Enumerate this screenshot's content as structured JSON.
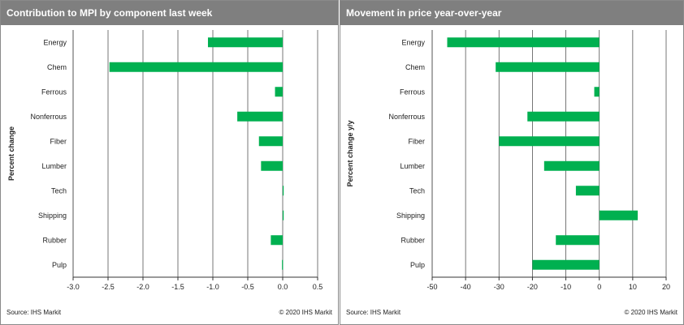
{
  "colors": {
    "bar": "#00b050",
    "header_bg": "#7f7f7f",
    "grid": "#555555"
  },
  "charts": [
    {
      "title": "Contribution  to MPI by component last week",
      "source": "Source:  IHS Markit",
      "copyright": "© 2020  IHS Markit"
    },
    {
      "title": "Movement in price year-over-year",
      "source": "Source:  IHS Markit",
      "copyright": "© 2020  IHS Markit"
    }
  ],
  "chart_data": [
    {
      "type": "bar",
      "orientation": "horizontal",
      "title": "Contribution  to MPI by component last week",
      "ylabel": "Percent change",
      "categories": [
        "Energy",
        "Chem",
        "Ferrous",
        "Nonferrous",
        "Fiber",
        "Lumber",
        "Tech",
        "Shipping",
        "Rubber",
        "Pulp"
      ],
      "values": [
        -1.07,
        -2.48,
        -0.11,
        -0.65,
        -0.34,
        -0.31,
        0.01,
        0.01,
        -0.17,
        -0.01
      ],
      "xlim": [
        -3.0,
        0.5
      ],
      "xticks": [
        "-3.0",
        "-2.5",
        "-2.0",
        "-1.5",
        "-1.0",
        "-0.5",
        "0.0",
        "0.5"
      ],
      "grid": "vertical"
    },
    {
      "type": "bar",
      "orientation": "horizontal",
      "title": "Movement in price year-over-year",
      "ylabel": "Percent change y/y",
      "categories": [
        "Energy",
        "Chem",
        "Ferrous",
        "Nonferrous",
        "Fiber",
        "Lumber",
        "Tech",
        "Shipping",
        "Rubber",
        "Pulp"
      ],
      "values": [
        -45.5,
        -31.0,
        -1.5,
        -21.5,
        -30.0,
        -16.5,
        -7.0,
        11.5,
        -13.0,
        -20.0
      ],
      "xlim": [
        -50,
        20
      ],
      "xticks": [
        "-50",
        "-40",
        "-30",
        "-20",
        "-10",
        "0",
        "10",
        "20"
      ],
      "grid": "vertical"
    }
  ]
}
